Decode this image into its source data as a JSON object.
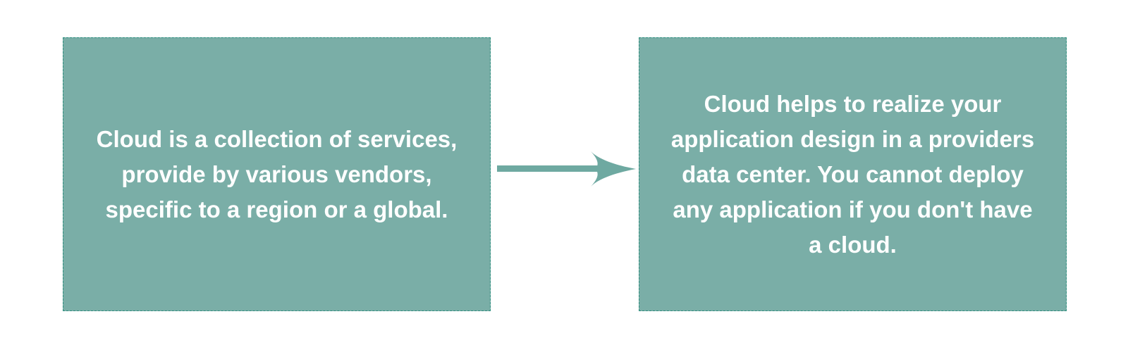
{
  "colors": {
    "box_fill": "#7aaea7",
    "box_border": "#2f8f7f",
    "text": "#ffffff",
    "arrow": "#6ea9a1"
  },
  "left_box": {
    "text": "Cloud is a collection of ser­vices, provide by various ven­dors, specific to a region or a global."
  },
  "right_box": {
    "text": "Cloud helps to realize your application design in a provid­ers data center. You cannot deploy any application if you don't have a cloud."
  },
  "connector": {
    "icon": "right-arrow-icon"
  }
}
